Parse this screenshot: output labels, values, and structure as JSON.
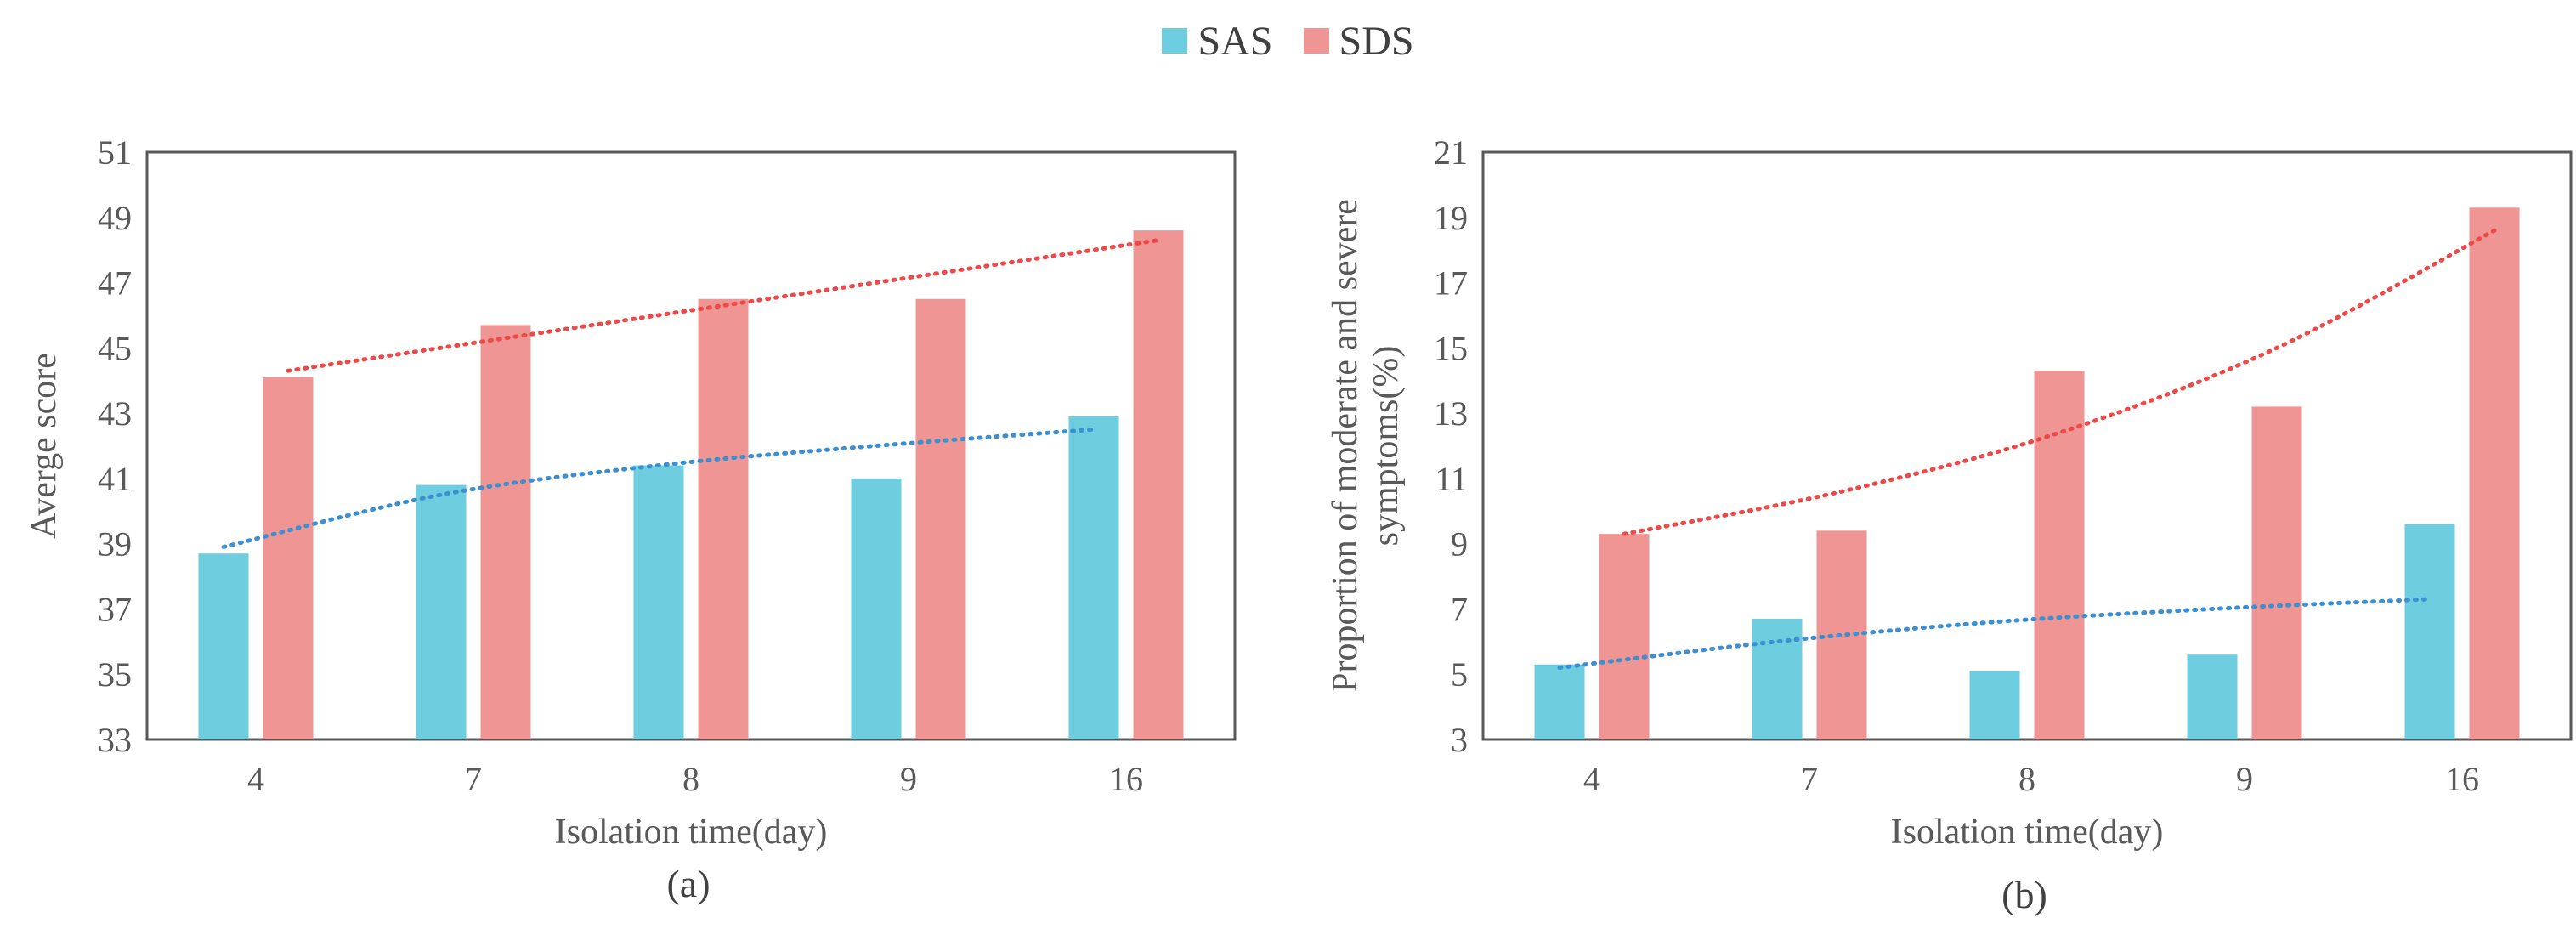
{
  "legend": {
    "items": [
      {
        "label": "SAS",
        "color": "#6ECEE0"
      },
      {
        "label": "SDS",
        "color": "#EF9593"
      }
    ]
  },
  "colors": {
    "sas": "#6ECEE0",
    "sds": "#EF9593",
    "sas_trend": "#3D8FD0",
    "sds_trend": "#EC4A48",
    "frame": "#595959"
  },
  "chart_data": [
    {
      "type": "bar",
      "panel_label": "(a)",
      "title": "",
      "xlabel": "Isolation time(day)",
      "ylabel": "Averge score",
      "ylabel_lines": [
        "Averge score"
      ],
      "categories": [
        "4",
        "7",
        "8",
        "9",
        "16"
      ],
      "series": [
        {
          "name": "SAS",
          "values": [
            38.7,
            40.8,
            41.4,
            41.0,
            42.9
          ]
        },
        {
          "name": "SDS",
          "values": [
            44.1,
            45.7,
            46.5,
            46.5,
            48.6
          ]
        }
      ],
      "trendlines": [
        {
          "series": "SAS",
          "type": "logarithmic",
          "points": [
            38.9,
            40.5,
            41.4,
            42.0,
            42.5
          ]
        },
        {
          "series": "SDS",
          "type": "linear",
          "points": [
            44.3,
            45.3,
            46.3,
            47.3,
            48.3
          ]
        }
      ],
      "ylim": [
        33,
        51
      ],
      "yticks": [
        33,
        35,
        37,
        39,
        41,
        43,
        45,
        47,
        49,
        51
      ],
      "grid": false
    },
    {
      "type": "bar",
      "panel_label": "(b)",
      "title": "",
      "xlabel": "Isolation time(day)",
      "ylabel": "Proportion of moderate and severe symptoms(%)",
      "ylabel_lines": [
        "Proportion of moderate and severe",
        "symptoms(%)"
      ],
      "categories": [
        "4",
        "7",
        "8",
        "9",
        "16"
      ],
      "series": [
        {
          "name": "SAS",
          "values": [
            5.3,
            6.7,
            5.1,
            5.6,
            9.6
          ]
        },
        {
          "name": "SDS",
          "values": [
            9.3,
            9.4,
            14.3,
            13.2,
            19.3
          ]
        }
      ],
      "trendlines": [
        {
          "series": "SAS",
          "type": "logarithmic",
          "points": [
            5.2,
            6.0,
            6.6,
            7.0,
            7.3
          ]
        },
        {
          "series": "SDS",
          "type": "exponential",
          "points": [
            9.3,
            10.6,
            12.4,
            15.0,
            18.6
          ]
        }
      ],
      "ylim": [
        3,
        21
      ],
      "yticks": [
        3,
        5,
        7,
        9,
        11,
        13,
        15,
        17,
        19,
        21
      ],
      "grid": false
    }
  ]
}
